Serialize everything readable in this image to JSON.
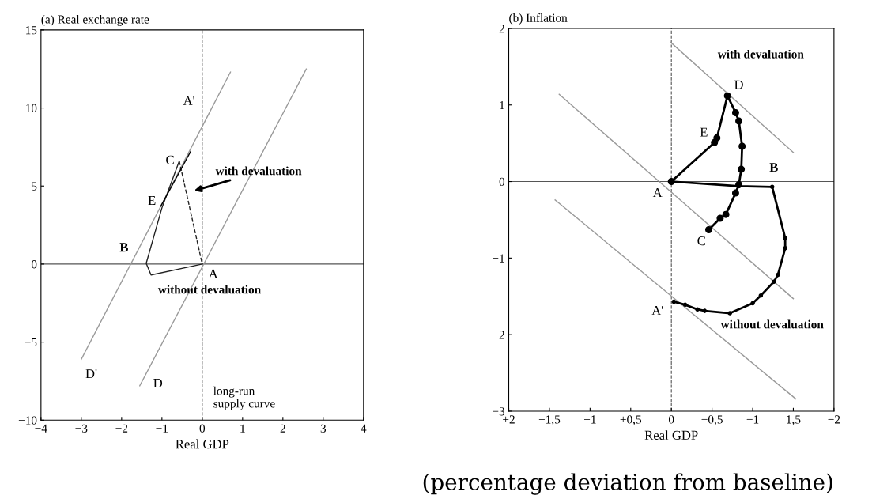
{
  "chart_data": [
    {
      "type": "line",
      "title": "(a) Real exchange rate",
      "xlabel": "Real GDP",
      "xlim": [
        -4,
        4
      ],
      "ylim": [
        -10,
        15
      ],
      "xticks": [
        {
          "value": -4,
          "label": "−4"
        },
        {
          "value": -3,
          "label": "−3"
        },
        {
          "value": -2,
          "label": "−2"
        },
        {
          "value": -1,
          "label": "−1"
        },
        0,
        1,
        2,
        3,
        4
      ],
      "yticks": [
        {
          "value": -10,
          "label": "−10"
        },
        {
          "value": -5,
          "label": "−5"
        },
        0,
        5,
        10,
        15
      ],
      "grid": false,
      "legend": false,
      "ref_lines": [
        {
          "axis": "x",
          "value": 0,
          "line_style": "dashed",
          "color": "#555555"
        },
        {
          "axis": "y",
          "value": 0,
          "line_style": "solid",
          "color": "#555555"
        }
      ],
      "series": [
        {
          "color": "#9a9a9a",
          "line_style": "solid",
          "x": [
            -3.0,
            0.7
          ],
          "values": [
            -6.1,
            12.3
          ]
        },
        {
          "color": "#9a9a9a",
          "line_style": "solid",
          "x": [
            -1.55,
            2.58
          ],
          "values": [
            -7.8,
            12.5
          ]
        },
        {
          "color": "#222222",
          "line_style": "solid",
          "x": [
            0,
            -1.27,
            -1.39,
            -1.0,
            -0.57
          ],
          "values": [
            0,
            -0.7,
            0.05,
            3.6,
            6.6
          ]
        },
        {
          "color": "#222222",
          "line_style": "dashed",
          "x": [
            -0.57,
            0
          ],
          "values": [
            6.6,
            0
          ]
        },
        {
          "color": "#000000",
          "line_style": "solid",
          "x": [
            -1.03,
            -0.29
          ],
          "values": [
            3.7,
            7.2
          ]
        }
      ],
      "annotations": [
        "A'",
        "C",
        "E",
        "B",
        "A",
        "without devaluation",
        "with devaluation",
        "D'",
        "D",
        "long-run\nsupply curve"
      ]
    },
    {
      "type": "line",
      "title": "(b) Inflation",
      "xlabel": "Real GDP",
      "xlim": [
        2,
        -2
      ],
      "ylim": [
        -3,
        2
      ],
      "xticks": [
        {
          "value": 2,
          "label": "+2"
        },
        {
          "value": 1.5,
          "label": "+1,5"
        },
        {
          "value": 1,
          "label": "+1"
        },
        {
          "value": 0.5,
          "label": "+0,5"
        },
        0,
        {
          "value": -0.5,
          "label": "−0,5"
        },
        {
          "value": -1,
          "label": "−1"
        },
        {
          "value": -1.5,
          "label": "1,5"
        },
        {
          "value": -2,
          "label": "−2"
        }
      ],
      "yticks": [
        {
          "value": -3,
          "label": "−3"
        },
        {
          "value": -2,
          "label": "−2"
        },
        {
          "value": -1,
          "label": "−1"
        },
        0,
        1,
        2
      ],
      "grid": false,
      "legend": false,
      "ref_lines": [
        {
          "axis": "x",
          "value": 0,
          "line_style": "dashed",
          "color": "#555555"
        },
        {
          "axis": "y",
          "value": 0,
          "line_style": "solid",
          "color": "#555555"
        }
      ],
      "series": [
        {
          "color": "#9a9a9a",
          "line_style": "solid",
          "x": [
            0.01,
            -1.5
          ],
          "values": [
            1.82,
            0.38
          ]
        },
        {
          "color": "#9a9a9a",
          "line_style": "solid",
          "x": [
            1.38,
            -1.5
          ],
          "values": [
            1.14,
            -1.53
          ]
        },
        {
          "color": "#9a9a9a",
          "line_style": "solid",
          "x": [
            1.43,
            -1.53
          ],
          "values": [
            -0.24,
            -2.84
          ]
        },
        {
          "color": "#000000",
          "line_style": "solid",
          "marker": "circle",
          "x": [
            0,
            -0.53,
            -0.56,
            -0.69,
            -0.79,
            -0.83,
            -0.87,
            -0.86,
            -0.83,
            -0.79,
            -0.67,
            -0.6,
            -0.46
          ],
          "values": [
            0,
            0.51,
            0.57,
            1.12,
            0.9,
            0.79,
            0.46,
            0.16,
            -0.04,
            -0.15,
            -0.43,
            -0.48,
            -0.63
          ]
        },
        {
          "color": "#000000",
          "line_style": "solid",
          "marker": "circle",
          "x": [
            0,
            -0.83,
            -1.24,
            -1.4,
            -1.4,
            -1.31,
            -1.26,
            -1.1,
            -1.0,
            -0.72,
            -0.41,
            -0.32,
            -0.17,
            -0.03
          ],
          "values": [
            0,
            -0.06,
            -0.07,
            -0.74,
            -0.87,
            -1.22,
            -1.31,
            -1.49,
            -1.59,
            -1.72,
            -1.69,
            -1.67,
            -1.61,
            -1.57
          ]
        }
      ],
      "annotations": [
        "D",
        "E",
        "B",
        "A",
        "C",
        "A'",
        "with devaluation",
        "without devaluation",
        "(percentage deviation from baseline)"
      ]
    }
  ]
}
